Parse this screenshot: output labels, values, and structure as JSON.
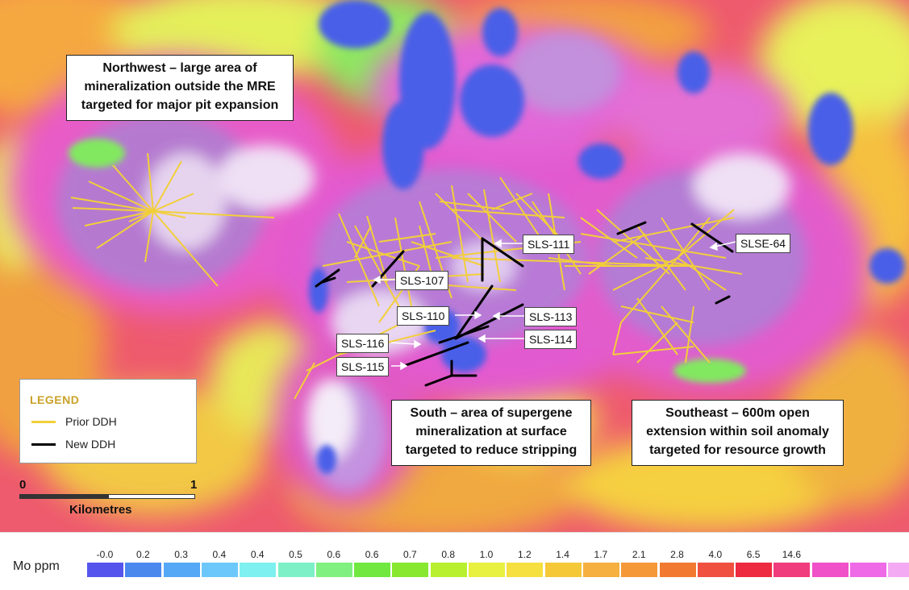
{
  "map": {
    "callouts": {
      "northwest": [
        "Northwest – large area of",
        "mineralization outside the MRE",
        "targeted for major pit expansion"
      ],
      "south": [
        "South – area of supergene",
        "mineralization at surface",
        "targeted to reduce stripping"
      ],
      "southeast": [
        "Southeast – 600m open",
        "extension within soil anomaly",
        "targeted for resource growth"
      ]
    },
    "drill_holes": {
      "sls_111": "SLS-111",
      "slse_64": "SLSE-64",
      "sls_107": "SLS-107",
      "sls_110": "SLS-110",
      "sls_113": "SLS-113",
      "sls_116": "SLS-116",
      "sls_114": "SLS-114",
      "sls_115": "SLS-115"
    }
  },
  "legend": {
    "title": "LEGEND",
    "prior_ddh": "Prior DDH",
    "new_ddh": "New DDH",
    "colors": {
      "prior": "#f2cf3a",
      "new": "#000000"
    }
  },
  "scale": {
    "start": "0",
    "end": "1",
    "unit": "Kilometres"
  },
  "colorbar": {
    "title": "Mo ppm",
    "ticks": [
      "-0.0",
      "0.2",
      "0.3",
      "0.4",
      "0.4",
      "0.5",
      "0.6",
      "0.6",
      "0.7",
      "0.8",
      "1.0",
      "1.2",
      "1.4",
      "1.7",
      "2.1",
      "2.8",
      "4.0",
      "6.5",
      "14.6"
    ],
    "colors": [
      "#5555ee",
      "#4a88ee",
      "#55a8f5",
      "#6cc8fa",
      "#7ef0f0",
      "#7ef0c8",
      "#80f080",
      "#70e840",
      "#88e830",
      "#b8f030",
      "#e8f040",
      "#f5e040",
      "#f5c838",
      "#f5b040",
      "#f59838",
      "#f27a30",
      "#f05040",
      "#ee2a40",
      "#f03c7c",
      "#f050c8",
      "#ee6ae6",
      "#f3aaf3"
    ]
  }
}
